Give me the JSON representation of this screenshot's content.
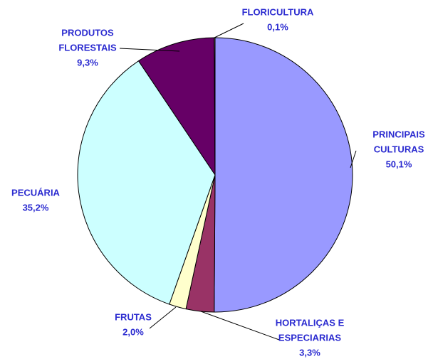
{
  "chart_data": {
    "type": "pie",
    "categories": [
      [
        "PRINCIPAIS",
        "CULTURAS"
      ],
      [
        "HORTALIÇAS E",
        "ESPECIARIAS"
      ],
      [
        "FRUTAS"
      ],
      [
        "PECUÁRIA"
      ],
      [
        "PRODUTOS",
        "FLORESTAIS"
      ],
      [
        "FLORICULTURA"
      ]
    ],
    "values": [
      50.1,
      3.3,
      2.0,
      35.2,
      9.3,
      0.1
    ],
    "value_labels": [
      "50,1%",
      "3,3%",
      "2,0%",
      "35,2%",
      "9,3%",
      "0,1%"
    ],
    "colors": [
      "#9999ff",
      "#993366",
      "#ffffcc",
      "#ccffff",
      "#660066",
      "#ffffcc"
    ]
  }
}
